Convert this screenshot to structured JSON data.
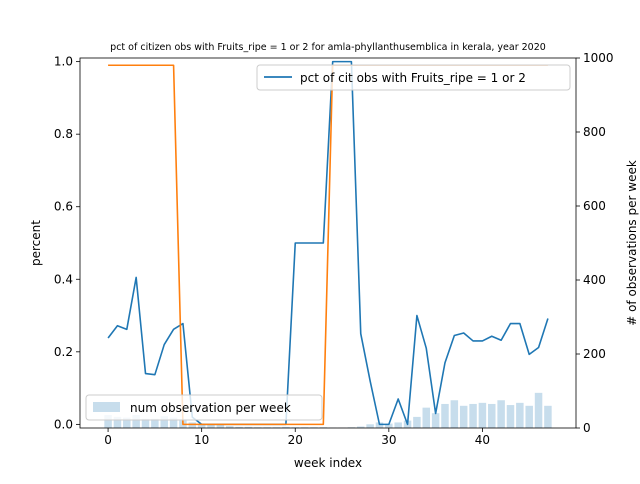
{
  "chart_data": {
    "type": "line",
    "title": "pct of citizen obs with Fruits_ripe = 1 or 2 for amla-phyllanthusemblica in kerala, year 2020",
    "xlabel": "week index",
    "ylabel": "percent",
    "ylabel_right": "# of observations per week",
    "xlim": [
      -3,
      50
    ],
    "ylim": [
      -0.01,
      1.01
    ],
    "ylim_right": [
      0,
      1000
    ],
    "xticks": [
      0,
      10,
      20,
      30,
      40
    ],
    "xtick_labels": [
      "0",
      "10",
      "20",
      "30",
      "40"
    ],
    "yticks": [
      0.0,
      0.2,
      0.4,
      0.6,
      0.8,
      1.0
    ],
    "ytick_labels": [
      "0.0",
      "0.2",
      "0.4",
      "0.6",
      "0.8",
      "1.0"
    ],
    "yticks_right": [
      0,
      200,
      400,
      600,
      800,
      1000
    ],
    "ytick_labels_right": [
      "0",
      "200",
      "400",
      "600",
      "800",
      "1000"
    ],
    "grid": false,
    "legend_line_placement": "top-right",
    "legend_bar_placement": "lower-left",
    "series": [
      {
        "name": "pct of cit obs with Fruits_ripe = 1 or 2",
        "kind": "line",
        "axis": "left",
        "color": "#1f77b4",
        "x": [
          0,
          1,
          2,
          3,
          4,
          5,
          6,
          7,
          8,
          9,
          10,
          11,
          12,
          13,
          14,
          15,
          16,
          17,
          18,
          19,
          20,
          21,
          22,
          23,
          24,
          25,
          26,
          27,
          28,
          29,
          30,
          31,
          32,
          33,
          34,
          35,
          36,
          37,
          38,
          39,
          40,
          41,
          42,
          43,
          44,
          45,
          46,
          47
        ],
        "values": [
          0.238,
          0.272,
          0.262,
          0.405,
          0.14,
          0.137,
          0.22,
          0.262,
          0.278,
          0.02,
          0.0,
          0.0,
          0.0,
          0.0,
          0.0,
          0.0,
          0.0,
          0.0,
          0.0,
          0.0,
          0.5,
          0.5,
          0.5,
          0.5,
          1.0,
          1.0,
          1.0,
          0.25,
          0.12,
          0.0,
          0.0,
          0.07,
          0.0,
          0.3,
          0.21,
          0.03,
          0.17,
          0.245,
          0.252,
          0.23,
          0.23,
          0.243,
          0.232,
          0.278,
          0.278,
          0.193,
          0.212,
          0.292
        ]
      },
      {
        "name": "",
        "kind": "line",
        "axis": "left",
        "color": "#ff7f0e",
        "x": [
          0,
          7,
          8,
          23,
          24,
          47
        ],
        "values": [
          0.99,
          0.99,
          0.0,
          0.0,
          0.99,
          0.99
        ]
      },
      {
        "name": "num observation per week",
        "kind": "bar",
        "axis": "right",
        "color": "#1f77b4",
        "x": [
          0,
          1,
          2,
          3,
          4,
          5,
          6,
          7,
          8,
          9,
          10,
          11,
          12,
          13,
          14,
          15,
          16,
          17,
          18,
          19,
          20,
          21,
          22,
          23,
          24,
          25,
          26,
          27,
          28,
          29,
          30,
          31,
          32,
          33,
          34,
          35,
          36,
          37,
          38,
          39,
          40,
          41,
          42,
          43,
          44,
          45,
          46,
          47
        ],
        "values": [
          35,
          30,
          28,
          35,
          25,
          25,
          32,
          28,
          20,
          15,
          12,
          10,
          8,
          5,
          3,
          3,
          2,
          2,
          2,
          3,
          2,
          2,
          2,
          2,
          1,
          1,
          2,
          4,
          10,
          15,
          12,
          15,
          20,
          30,
          55,
          40,
          65,
          75,
          60,
          65,
          68,
          65,
          75,
          62,
          68,
          60,
          95,
          60
        ]
      }
    ]
  }
}
